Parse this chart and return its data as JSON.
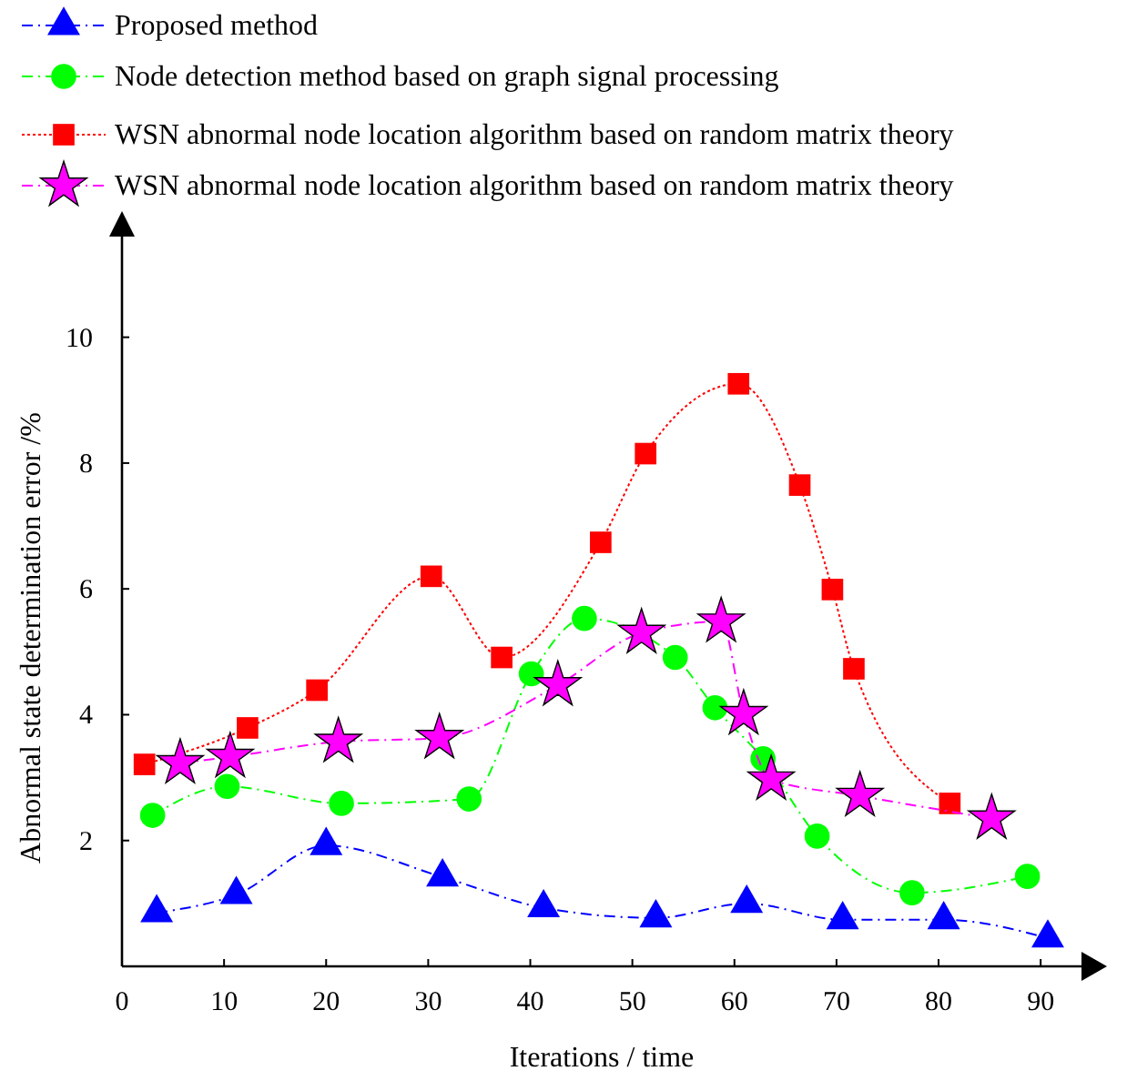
{
  "chart_data": {
    "type": "line",
    "xlabel": "Iterations / time",
    "ylabel": "Abnormal state determination error /%",
    "xlim": [
      0,
      94
    ],
    "ylim": [
      0,
      11.6
    ],
    "xticks": [
      0,
      10,
      20,
      30,
      40,
      50,
      60,
      70,
      80,
      90
    ],
    "yticks": [
      2,
      4,
      6,
      8,
      10
    ],
    "grid": false,
    "legend": "top left",
    "series": [
      {
        "name": "Proposed method",
        "color": "#0000ff",
        "marker": "triangle",
        "line_style": "dashed",
        "x": [
          3.4,
          11.2,
          20,
          31.4,
          41.3,
          52.3,
          61.2,
          70.6,
          80.5,
          90.7
        ],
        "values": [
          0.85,
          1.14,
          1.92,
          1.42,
          0.93,
          0.77,
          1.0,
          0.74,
          0.74,
          0.45
        ]
      },
      {
        "name": "Node detection method based on graph signal processing",
        "color": "#00ff00",
        "marker": "circle",
        "line_style": "dashed",
        "x": [
          3.0,
          10.3,
          21.5,
          34.0,
          40.1,
          45.3,
          54.2,
          58.1,
          62.8,
          68.1,
          77.4,
          88.7
        ],
        "values": [
          2.4,
          2.86,
          2.59,
          2.66,
          4.65,
          5.53,
          4.91,
          4.11,
          3.3,
          2.07,
          1.17,
          1.43
        ]
      },
      {
        "name": "WSN abnormal node location algorithm based on random matrix theory",
        "color": "#ff0000",
        "marker": "square",
        "line_style": "dotted",
        "x": [
          2.2,
          12.3,
          19.1,
          30.3,
          37.2,
          46.9,
          51.3,
          60.4,
          66.4,
          69.6,
          71.7,
          81.1
        ],
        "values": [
          3.21,
          3.79,
          4.39,
          6.2,
          4.91,
          6.74,
          8.15,
          9.26,
          7.65,
          5.99,
          4.73,
          2.59
        ]
      },
      {
        "name": "WSN abnormal node location algorithm based on random matrix theory",
        "color": "#ff00ff",
        "marker": "star",
        "line_style": "dashed",
        "x": [
          5.7,
          10.6,
          21.2,
          31.1,
          42.7,
          50.9,
          58.7,
          60.9,
          63.6,
          72.3,
          85.2
        ],
        "values": [
          3.23,
          3.33,
          3.57,
          3.63,
          4.47,
          5.3,
          5.48,
          4.01,
          2.97,
          2.71,
          2.35
        ]
      }
    ]
  }
}
